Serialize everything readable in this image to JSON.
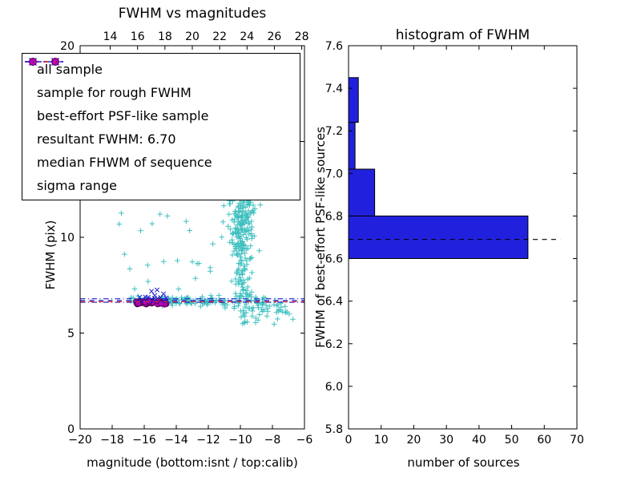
{
  "page": {
    "background": "#ffffff"
  },
  "legend": {
    "items": [
      {
        "label": "all sample",
        "type": "scatter",
        "marker": "plus",
        "color": "#40c0c0"
      },
      {
        "label": "sample for rough FWHM",
        "type": "scatter",
        "marker": "x",
        "color": "#2020cc"
      },
      {
        "label": "best-effort PSF-like sample",
        "type": "scatter",
        "marker": "circle",
        "color": "#bf00bf",
        "edge_color": "#4d004d"
      },
      {
        "label": "resultant FWHM: 6.70",
        "type": "line",
        "style": "dashed",
        "color": "#2020cc"
      },
      {
        "label": "median FHWM of sequence",
        "type": "line",
        "style": "dashed",
        "color": "#ee2222"
      },
      {
        "label": "sigma range",
        "type": "line",
        "style": "dashdot",
        "color": "#2020cc"
      }
    ]
  },
  "chart_data": [
    {
      "type": "scatter",
      "title": "FWHM vs magnitudes",
      "xlabel": "magnitude (bottom:isnt / top:calib)",
      "ylabel": "FWHM (pix)",
      "xlim": [
        -20,
        -6
      ],
      "ylim": [
        0,
        20
      ],
      "xticks": [
        {
          "v": -20,
          "label": "−20"
        },
        {
          "v": -18,
          "label": "−18"
        },
        {
          "v": -16,
          "label": "−16"
        },
        {
          "v": -14,
          "label": "−14"
        },
        {
          "v": -12,
          "label": "−12"
        },
        {
          "v": -10,
          "label": "−10"
        },
        {
          "v": -8,
          "label": "−8"
        },
        {
          "v": -6,
          "label": "−6"
        }
      ],
      "yticks": [
        {
          "v": 0,
          "label": "0"
        },
        {
          "v": 5,
          "label": "5"
        },
        {
          "v": 10,
          "label": "10"
        },
        {
          "v": 15,
          "label": "15"
        },
        {
          "v": 20,
          "label": "20"
        }
      ],
      "top_axis": {
        "xlim": [
          11.8,
          28.2
        ],
        "ticks": [
          {
            "v": 14,
            "label": "14"
          },
          {
            "v": 16,
            "label": "16"
          },
          {
            "v": 18,
            "label": "18"
          },
          {
            "v": 20,
            "label": "20"
          },
          {
            "v": 22,
            "label": "22"
          },
          {
            "v": 24,
            "label": "24"
          },
          {
            "v": 26,
            "label": "26"
          },
          {
            "v": 28,
            "label": "28"
          }
        ]
      },
      "seed": 1337,
      "series": [
        {
          "name": "all sample",
          "marker": "plus",
          "color": "#40c0c0",
          "clusters": [
            {
              "n": 120,
              "x": [
                "u",
                -16.9,
                -11.4
              ],
              "y": [
                "g",
                6.68,
                0.12
              ]
            },
            {
              "n": 55,
              "x": [
                "u",
                -11.4,
                -8.4
              ],
              "y": [
                "g",
                6.6,
                0.22
              ]
            },
            {
              "n": 110,
              "x": [
                "g",
                -9.9,
                0.27
              ],
              "y": [
                "u",
                6.9,
                11.0
              ]
            },
            {
              "n": 150,
              "x": [
                "g",
                -9.95,
                0.45
              ],
              "y": [
                "g",
                11.3,
                1.0
              ]
            },
            {
              "n": 26,
              "x": [
                "u",
                -17.6,
                -11.3
              ],
              "y": [
                "u",
                7.3,
                13.5
              ]
            },
            {
              "n": 26,
              "x": [
                "u",
                -10.0,
                -7.6
              ],
              "y": [
                "u",
                5.4,
                6.45
              ]
            },
            {
              "n": 18,
              "x": [
                "g",
                -7.5,
                0.5
              ],
              "y": [
                "g",
                6.2,
                0.25
              ]
            },
            {
              "n": 12,
              "x": [
                "u",
                -13.2,
                -9.3
              ],
              "y": [
                "u",
                12.8,
                13.8
              ]
            }
          ],
          "points": []
        },
        {
          "name": "sample for rough FWHM",
          "marker": "x",
          "color": "#2020cc",
          "clusters": [
            {
              "n": 19,
              "x": [
                "g",
                -15.4,
                0.45
              ],
              "y": [
                "g",
                6.8,
                0.16
              ]
            }
          ],
          "points": [
            [
              -15.2,
              7.25
            ],
            [
              -14.8,
              7.05
            ]
          ]
        },
        {
          "name": "best-effort PSF-like sample",
          "marker": "circle",
          "color": "#bf00bf",
          "edge_color": "#4d004d",
          "clusters": [
            {
              "n": 27,
              "x": [
                "u",
                -16.5,
                -14.4
              ],
              "y": [
                "g",
                6.58,
                0.05
              ]
            }
          ],
          "points": []
        }
      ],
      "hlines": [
        {
          "name": "sigma range lower",
          "y": 6.61,
          "style": "dashdot",
          "color": "#2020cc"
        },
        {
          "name": "sigma range upper",
          "y": 6.79,
          "style": "dashdot",
          "color": "#2020cc"
        },
        {
          "name": "resultant FWHM: 6.70",
          "y": 6.7,
          "style": "dashed",
          "color": "#2020cc"
        },
        {
          "name": "median FHWM of sequence",
          "y": 6.64,
          "style": "dashed",
          "color": "#ee2222"
        }
      ]
    },
    {
      "type": "bar",
      "orientation": "horizontal",
      "title": "histogram of FWHM",
      "xlabel": "number of sources",
      "ylabel": "FWHM of best-effort PSF-like sources",
      "xlim": [
        0,
        70
      ],
      "ylim": [
        5.8,
        7.6
      ],
      "xticks": [
        {
          "v": 0,
          "label": "0"
        },
        {
          "v": 10,
          "label": "10"
        },
        {
          "v": 20,
          "label": "20"
        },
        {
          "v": 30,
          "label": "30"
        },
        {
          "v": 40,
          "label": "40"
        },
        {
          "v": 50,
          "label": "50"
        },
        {
          "v": 60,
          "label": "60"
        },
        {
          "v": 70,
          "label": "70"
        }
      ],
      "yticks": [
        {
          "v": 5.8,
          "label": "5.8"
        },
        {
          "v": 6.0,
          "label": "6.0"
        },
        {
          "v": 6.2,
          "label": "6.2"
        },
        {
          "v": 6.4,
          "label": "6.4"
        },
        {
          "v": 6.6,
          "label": "6.6"
        },
        {
          "v": 6.8,
          "label": "6.8"
        },
        {
          "v": 7.0,
          "label": "7.0"
        },
        {
          "v": 7.2,
          "label": "7.2"
        },
        {
          "v": 7.4,
          "label": "7.4"
        },
        {
          "v": 7.6,
          "label": "7.6"
        }
      ],
      "bin_edges": [
        6.6,
        6.8,
        7.02,
        7.24,
        7.45
      ],
      "values": [
        55,
        8,
        2,
        3
      ],
      "bar_color": "#2121dd",
      "edge_color": "#000000",
      "marker_line": {
        "y": 6.69,
        "x0": 0,
        "x1": 65,
        "style": "dashed",
        "color": "#000000"
      }
    }
  ]
}
